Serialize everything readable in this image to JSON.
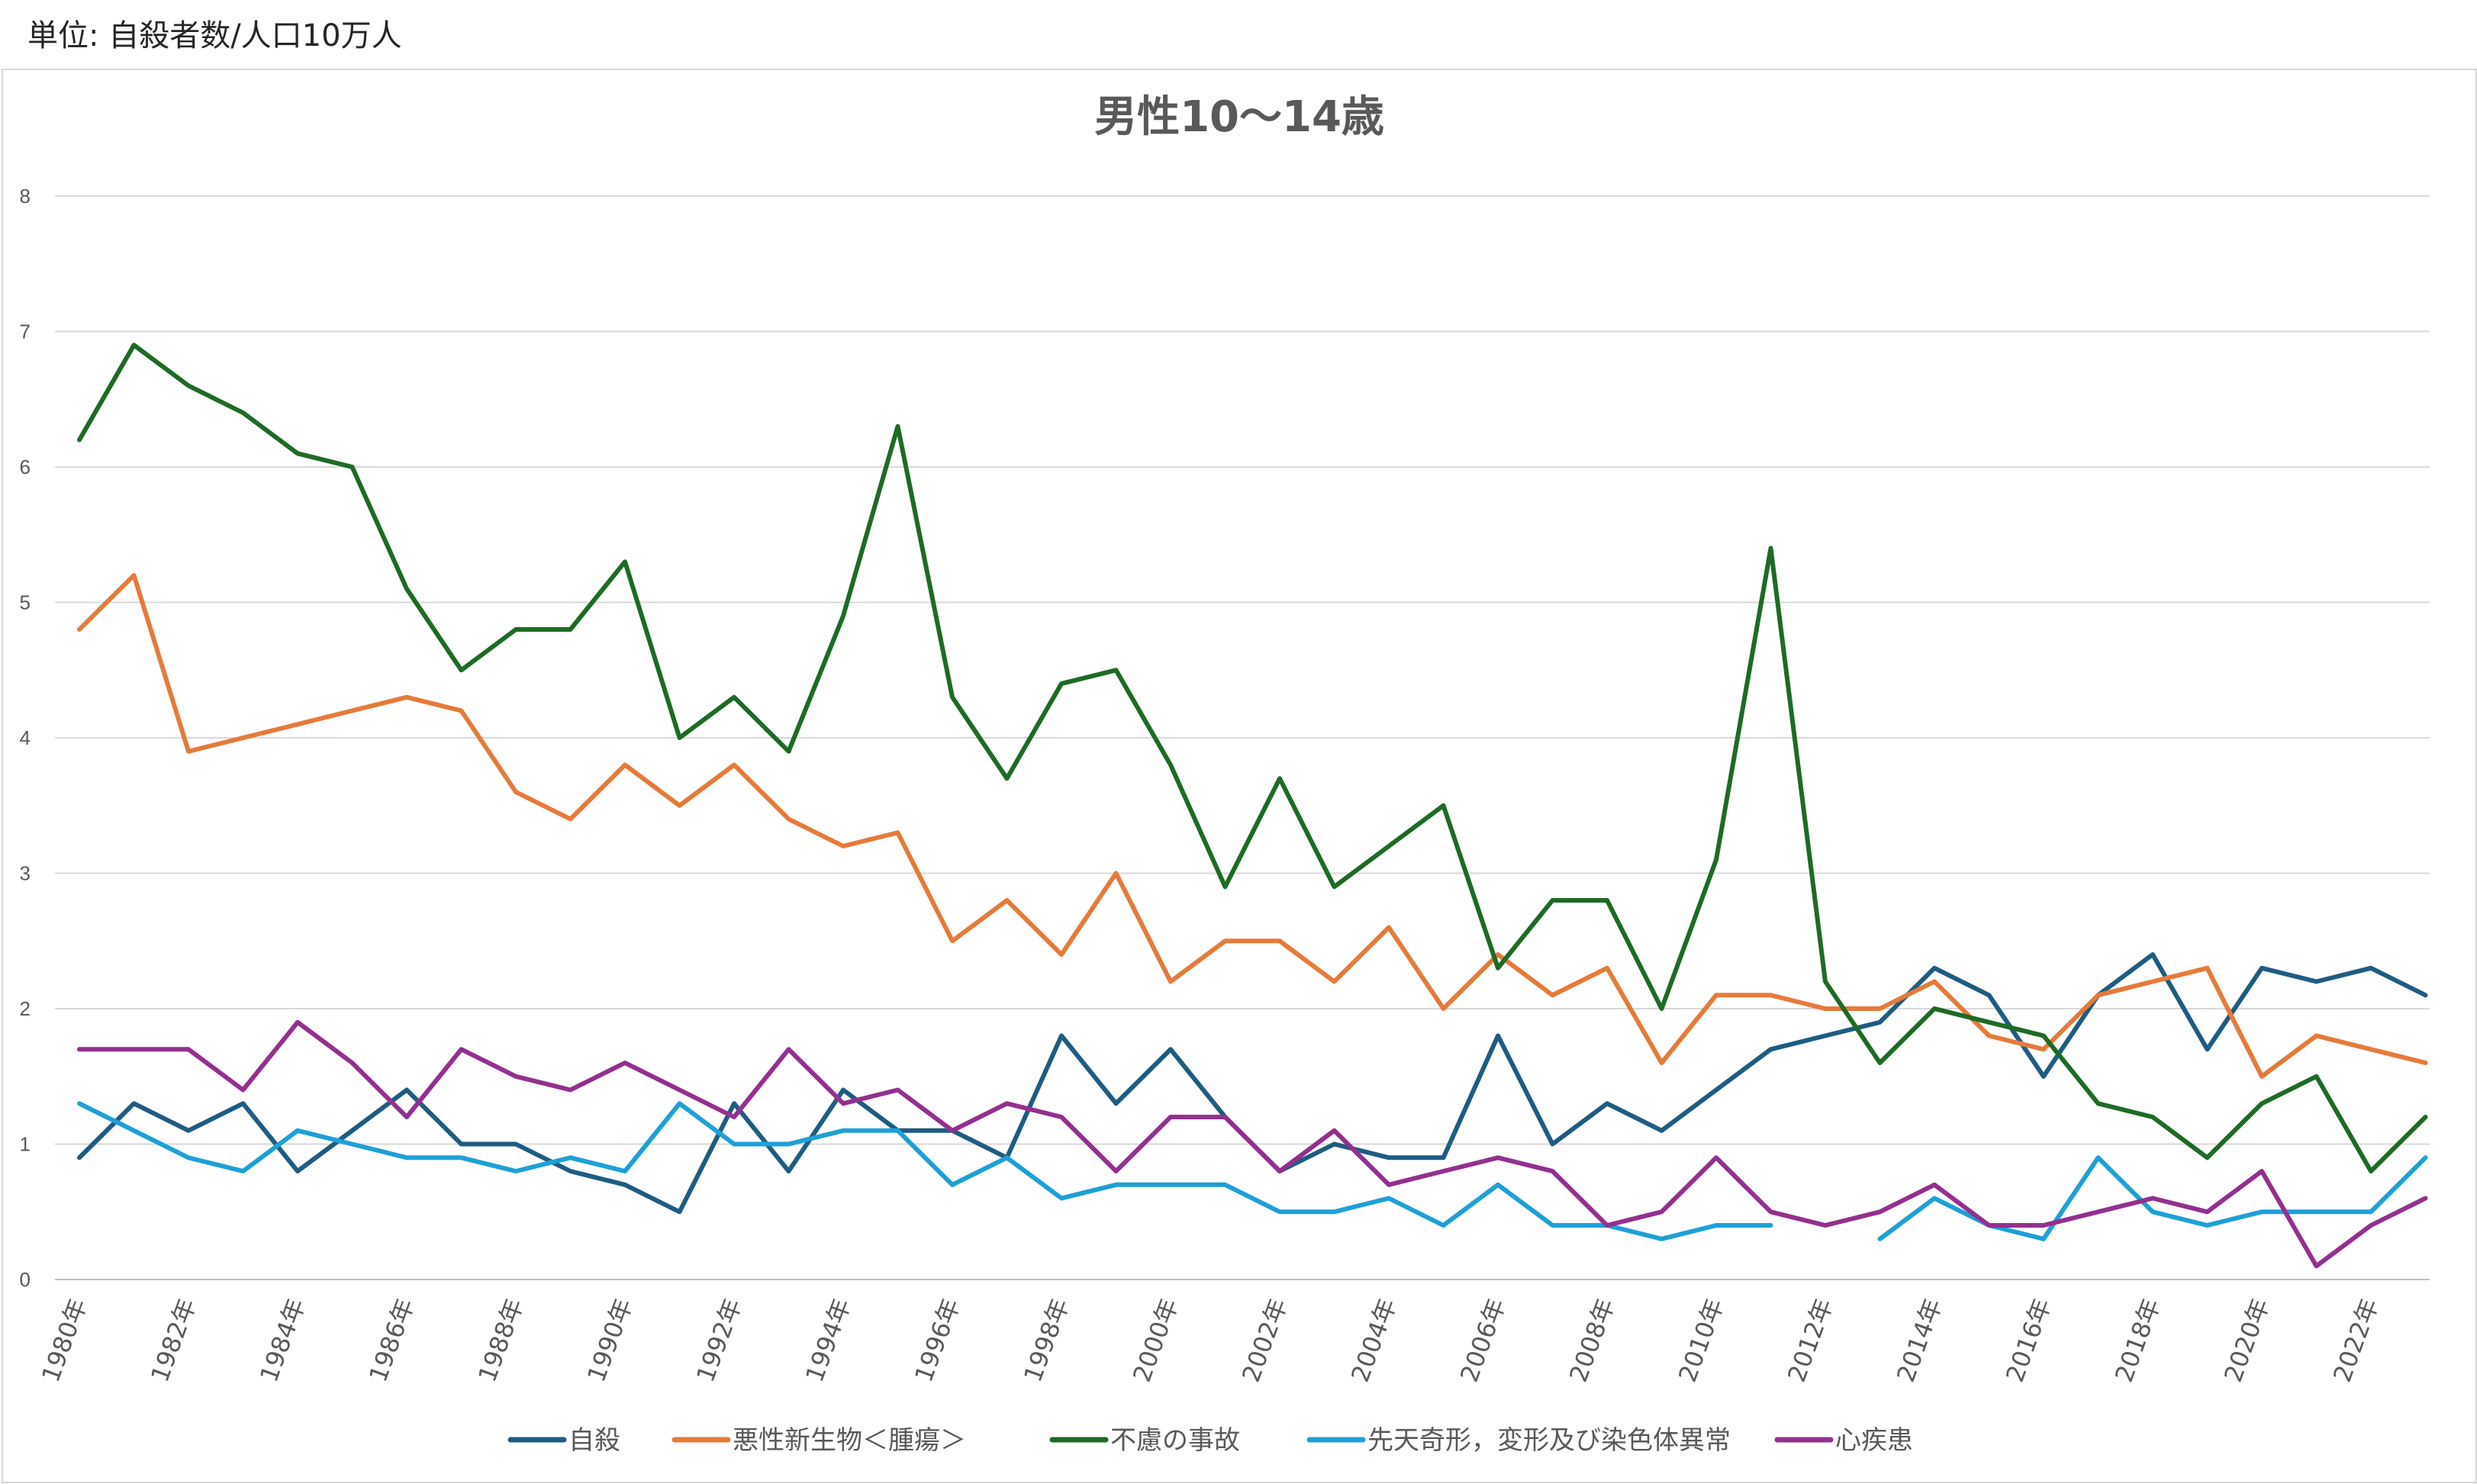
{
  "unit_note": "単位: 自殺者数/人口10万人",
  "chart_data": {
    "type": "line",
    "title": "男性10〜14歳",
    "xlabel": "",
    "ylabel": "",
    "ylim": [
      0,
      8
    ],
    "yticks": [
      0,
      1,
      2,
      3,
      4,
      5,
      6,
      7,
      8
    ],
    "grid": true,
    "legend_position": "bottom",
    "x": [
      1980,
      1981,
      1982,
      1983,
      1984,
      1985,
      1986,
      1987,
      1988,
      1989,
      1990,
      1991,
      1992,
      1993,
      1994,
      1995,
      1996,
      1997,
      1998,
      1999,
      2000,
      2001,
      2002,
      2003,
      2004,
      2005,
      2006,
      2007,
      2008,
      2009,
      2010,
      2011,
      2012,
      2013,
      2014,
      2015,
      2016,
      2017,
      2018,
      2019,
      2020,
      2021,
      2022,
      2023
    ],
    "x_tick_labels": [
      "1980年",
      "1982年",
      "1984年",
      "1986年",
      "1988年",
      "1990年",
      "1992年",
      "1994年",
      "1996年",
      "1998年",
      "2000年",
      "2002年",
      "2004年",
      "2006年",
      "2008年",
      "2010年",
      "2012年",
      "2014年",
      "2016年",
      "2018年",
      "2020年",
      "2022年"
    ],
    "series": [
      {
        "name": "自殺",
        "color": "#1f5c82",
        "values": [
          0.9,
          1.3,
          1.1,
          1.3,
          0.8,
          1.1,
          1.4,
          1.0,
          1.0,
          0.8,
          0.7,
          0.5,
          1.3,
          0.8,
          1.4,
          1.1,
          1.1,
          0.9,
          1.8,
          1.3,
          1.7,
          1.2,
          0.8,
          1.0,
          0.9,
          0.9,
          1.8,
          1.0,
          1.3,
          1.1,
          1.4,
          1.7,
          1.8,
          1.9,
          2.3,
          2.1,
          1.5,
          2.1,
          2.4,
          1.7,
          2.3,
          2.2,
          2.3,
          2.1
        ]
      },
      {
        "name": "悪性新生物＜腫瘍＞",
        "color": "#e67a3a",
        "values": [
          4.8,
          5.2,
          3.9,
          4.0,
          4.1,
          4.2,
          4.3,
          4.2,
          3.6,
          3.4,
          3.8,
          3.5,
          3.8,
          3.4,
          3.2,
          3.3,
          2.5,
          2.8,
          2.4,
          3.0,
          2.2,
          2.5,
          2.5,
          2.2,
          2.6,
          2.0,
          2.4,
          2.1,
          2.3,
          1.6,
          2.1,
          2.1,
          2.0,
          2.0,
          2.2,
          1.8,
          1.7,
          2.1,
          2.2,
          2.3,
          1.5,
          1.8,
          1.7,
          1.6
        ]
      },
      {
        "name": "不慮の事故",
        "color": "#1e6b25",
        "values": [
          6.2,
          6.9,
          6.6,
          6.4,
          6.1,
          6.0,
          5.1,
          4.5,
          4.8,
          4.8,
          5.3,
          4.0,
          4.3,
          3.9,
          4.9,
          6.3,
          4.3,
          3.7,
          4.4,
          4.5,
          3.8,
          2.9,
          3.7,
          2.9,
          3.2,
          3.5,
          2.3,
          2.8,
          2.8,
          2.0,
          3.1,
          5.4,
          2.2,
          1.6,
          2.0,
          1.9,
          1.8,
          1.3,
          1.2,
          0.9,
          1.3,
          1.5,
          0.8,
          1.2
        ]
      },
      {
        "name": "先天奇形，変形及び染色体異常",
        "color": "#1ea0d6",
        "values": [
          1.3,
          1.1,
          0.9,
          0.8,
          1.1,
          1.0,
          0.9,
          0.9,
          0.8,
          0.9,
          0.8,
          1.3,
          1.0,
          1.0,
          1.1,
          1.1,
          0.7,
          0.9,
          0.6,
          0.7,
          0.7,
          0.7,
          0.5,
          0.5,
          0.6,
          0.4,
          0.7,
          0.4,
          0.4,
          0.3,
          0.4,
          0.4,
          null,
          0.3,
          0.6,
          0.4,
          0.3,
          0.9,
          0.5,
          0.4,
          0.5,
          0.5,
          0.5,
          0.9
        ]
      },
      {
        "name": "心疾患",
        "color": "#93308f",
        "values": [
          1.7,
          1.7,
          1.7,
          1.4,
          1.9,
          1.6,
          1.2,
          1.7,
          1.5,
          1.4,
          1.6,
          1.4,
          1.2,
          1.7,
          1.3,
          1.4,
          1.1,
          1.3,
          1.2,
          0.8,
          1.2,
          1.2,
          0.8,
          1.1,
          0.7,
          0.8,
          0.9,
          0.8,
          0.4,
          0.5,
          0.9,
          0.5,
          0.4,
          0.5,
          0.7,
          0.4,
          0.4,
          0.5,
          0.6,
          0.5,
          0.8,
          0.1,
          0.4,
          0.6
        ]
      }
    ]
  }
}
